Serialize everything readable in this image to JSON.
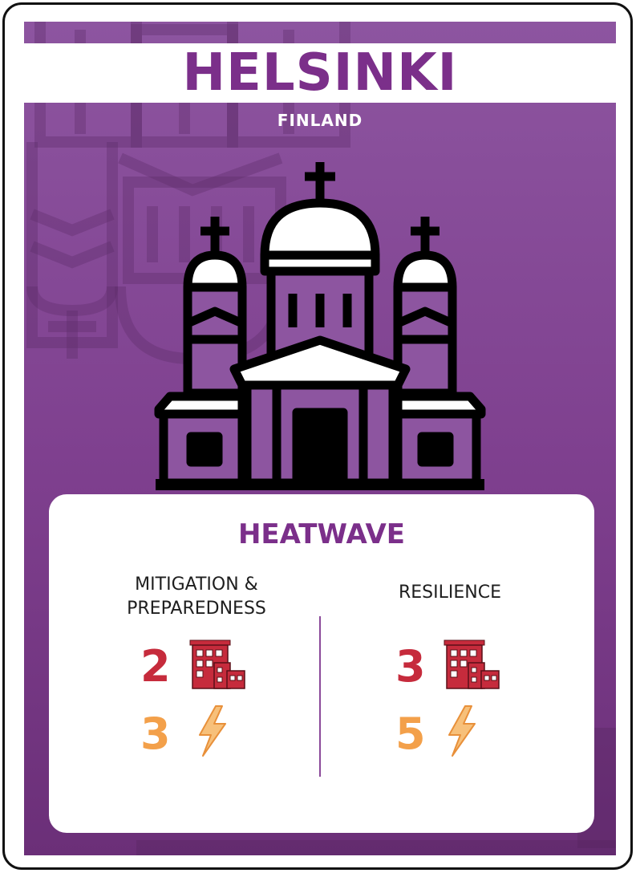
{
  "card": {
    "city": "HELSINKI",
    "country": "FINLAND",
    "hazard": "HEATWAVE",
    "colors": {
      "purple": "#7b2f8a",
      "background": "#8d55a0",
      "red": "#c62b3c",
      "orange": "#f3a04a"
    }
  },
  "columns": {
    "mitigation": {
      "title_line1": "MITIGATION &",
      "title_line2": "PREPAREDNESS",
      "buildings_value": "2",
      "energy_value": "3",
      "buildings_icon": "buildings-icon",
      "energy_icon": "lightning-icon"
    },
    "resilience": {
      "title": "RESILIENCE",
      "buildings_value": "3",
      "energy_value": "5",
      "buildings_icon": "buildings-icon",
      "energy_icon": "lightning-icon"
    }
  }
}
